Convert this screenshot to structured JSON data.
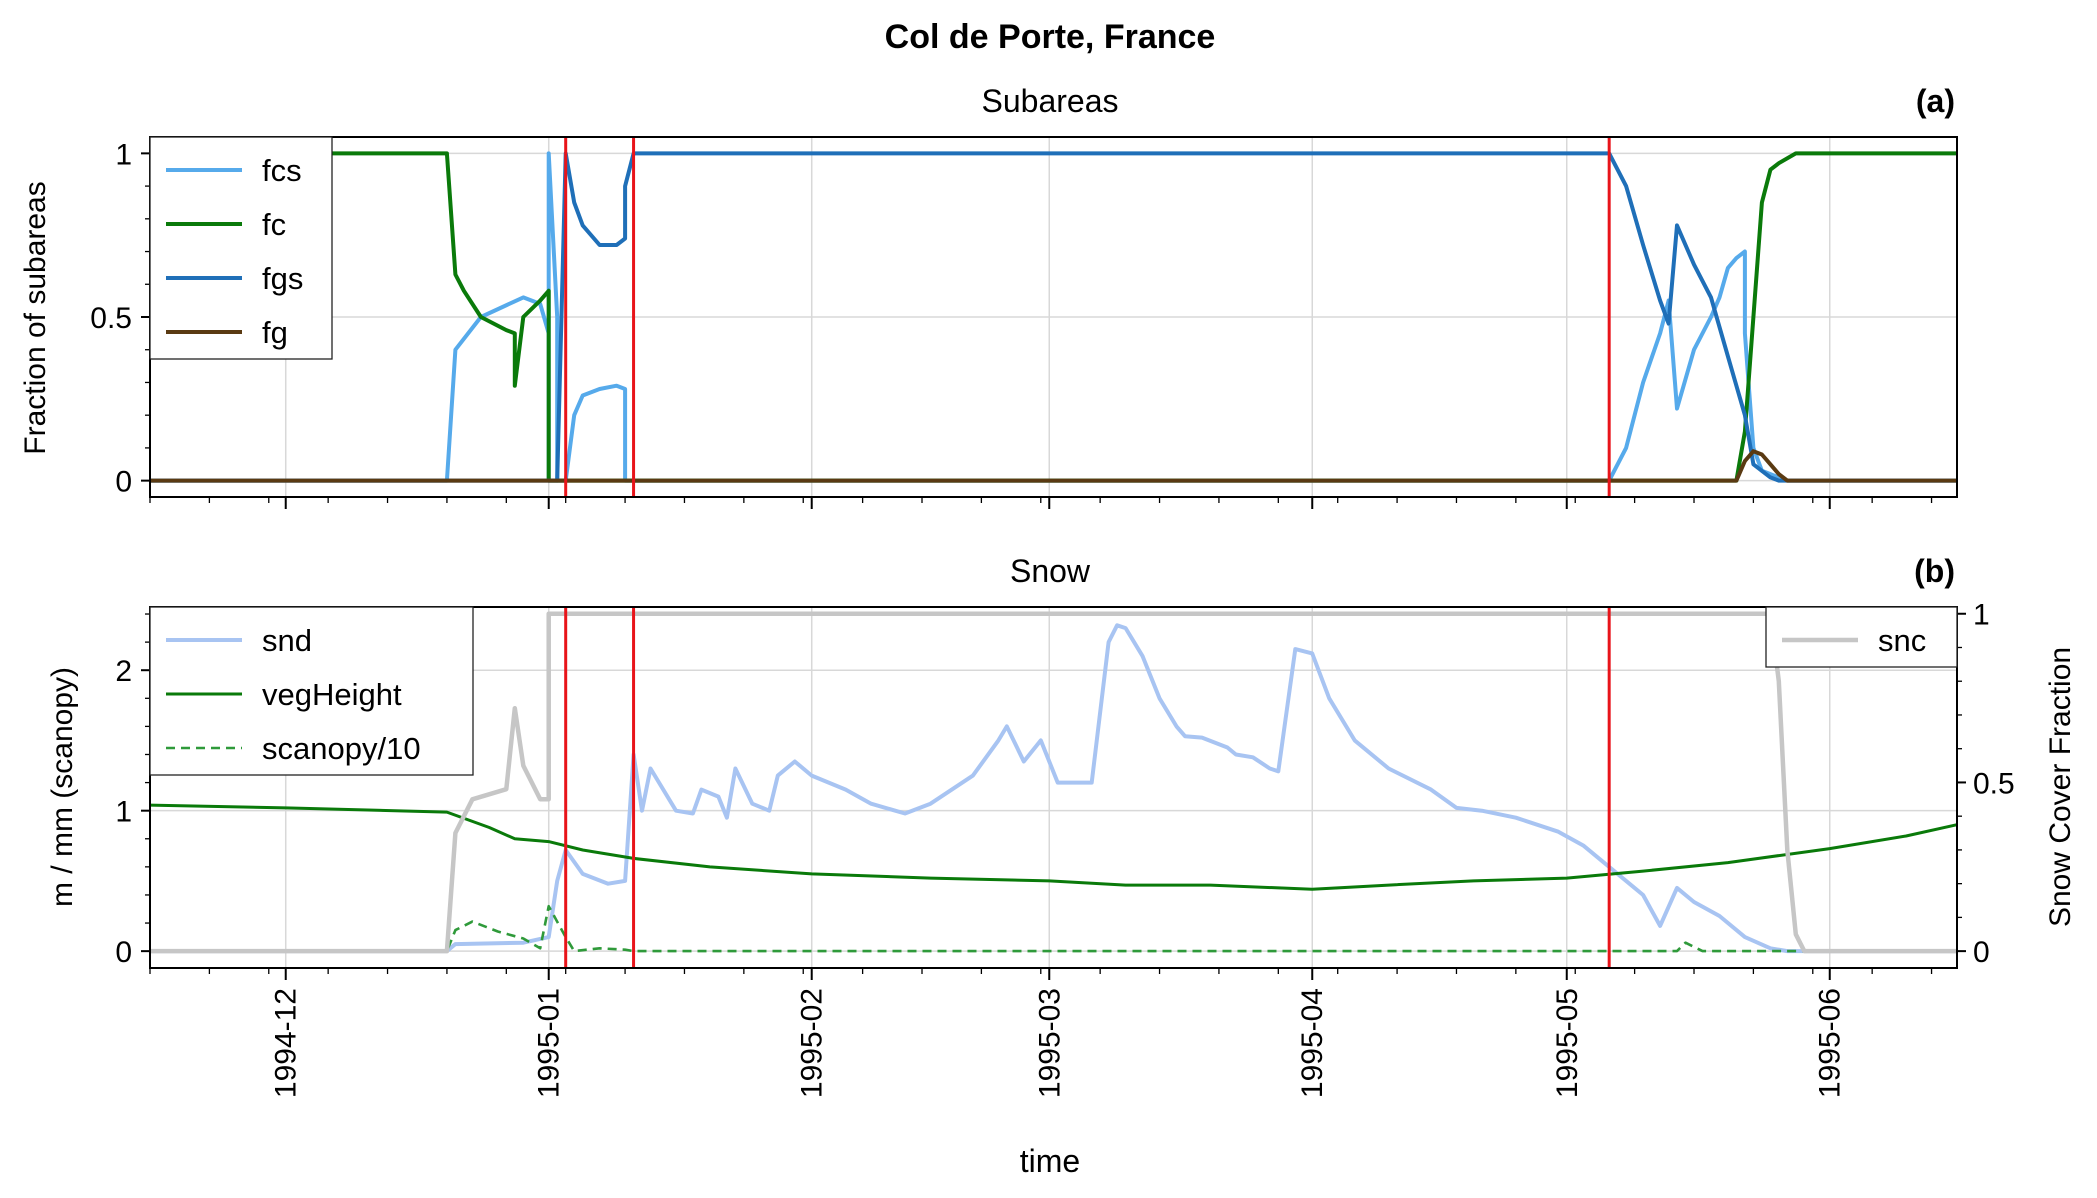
{
  "figure_title": "Col de Porte, France",
  "colors": {
    "fcs": "#56aaeb",
    "fc": "#0a7a0a",
    "fgs": "#1f6fb8",
    "fg": "#5a3a12",
    "snd": "#a8c4f2",
    "vegHeight": "#0a7a0a",
    "scanopy": "#2f9a3a",
    "snc": "#c6c6c6",
    "event": "#e8141a",
    "grid": "#d8d8d8"
  },
  "chart_data": [
    {
      "panel": "a",
      "type": "line",
      "title": "Subareas",
      "panel_label": "(a)",
      "xlabel": "",
      "ylabel": "Fraction of subareas",
      "ylim": [
        -0.05,
        1.05
      ],
      "yticks": [
        0,
        0.5,
        1
      ],
      "ytick_labels": [
        "0",
        "0.5",
        "1"
      ],
      "xlim": [
        "1994-11-15",
        "1995-06-16"
      ],
      "grid": true,
      "legend_position": "upper-left",
      "vlines": [
        "1995-01-03",
        "1995-01-11",
        "1995-05-06"
      ],
      "series": [
        {
          "name": "fcs",
          "key": "fcs",
          "width": 4,
          "dash": "",
          "points": [
            [
              "1994-11-15",
              0
            ],
            [
              "1994-12-20",
              0
            ],
            [
              "1994-12-21",
              0.4
            ],
            [
              "1994-12-24",
              0.5
            ],
            [
              "1994-12-29",
              0.56
            ],
            [
              "1994-12-31",
              0.54
            ],
            [
              "1995-01-01",
              0.45
            ],
            [
              "1995-01-01",
              0
            ],
            [
              "1995-01-01",
              1
            ],
            [
              "1995-01-02",
              0.5
            ],
            [
              "1995-01-02",
              0
            ],
            [
              "1995-01-03",
              0
            ],
            [
              "1995-01-04",
              0.2
            ],
            [
              "1995-01-05",
              0.26
            ],
            [
              "1995-01-07",
              0.28
            ],
            [
              "1995-01-09",
              0.29
            ],
            [
              "1995-01-10",
              0.28
            ],
            [
              "1995-01-10",
              0
            ],
            [
              "1995-01-11",
              0
            ],
            [
              "1995-05-06",
              0
            ],
            [
              "1995-05-08",
              0.1
            ],
            [
              "1995-05-10",
              0.3
            ],
            [
              "1995-05-12",
              0.45
            ],
            [
              "1995-05-13",
              0.55
            ],
            [
              "1995-05-14",
              0.22
            ],
            [
              "1995-05-16",
              0.4
            ],
            [
              "1995-05-18",
              0.5
            ],
            [
              "1995-05-19",
              0.56
            ],
            [
              "1995-05-20",
              0.65
            ],
            [
              "1995-05-21",
              0.68
            ],
            [
              "1995-05-22",
              0.7
            ],
            [
              "1995-05-22",
              0.45
            ],
            [
              "1995-05-23",
              0.1
            ],
            [
              "1995-05-24",
              0.03
            ],
            [
              "1995-05-26",
              0.01
            ],
            [
              "1995-05-27",
              0
            ],
            [
              "1995-06-16",
              0
            ]
          ]
        },
        {
          "name": "fc",
          "key": "fc",
          "width": 4,
          "dash": "",
          "points": [
            [
              "1994-11-15",
              1
            ],
            [
              "1994-12-20",
              1
            ],
            [
              "1994-12-21",
              0.63
            ],
            [
              "1994-12-22",
              0.58
            ],
            [
              "1994-12-24",
              0.5
            ],
            [
              "1994-12-27",
              0.46
            ],
            [
              "1994-12-28",
              0.45
            ],
            [
              "1994-12-28",
              0.29
            ],
            [
              "1994-12-29",
              0.5
            ],
            [
              "1994-12-31",
              0.55
            ],
            [
              "1995-01-01",
              0.58
            ],
            [
              "1995-01-01",
              0
            ],
            [
              "1995-01-11",
              0
            ],
            [
              "1995-05-21",
              0
            ],
            [
              "1995-05-22",
              0.15
            ],
            [
              "1995-05-23",
              0.5
            ],
            [
              "1995-05-24",
              0.85
            ],
            [
              "1995-05-25",
              0.95
            ],
            [
              "1995-05-26",
              0.97
            ],
            [
              "1995-05-28",
              1
            ],
            [
              "1995-06-16",
              1
            ]
          ]
        },
        {
          "name": "fgs",
          "key": "fgs",
          "width": 4,
          "dash": "",
          "points": [
            [
              "1994-11-15",
              0
            ],
            [
              "1995-01-02",
              0
            ],
            [
              "1995-01-03",
              1
            ],
            [
              "1995-01-04",
              0.85
            ],
            [
              "1995-01-05",
              0.78
            ],
            [
              "1995-01-07",
              0.72
            ],
            [
              "1995-01-09",
              0.72
            ],
            [
              "1995-01-10",
              0.74
            ],
            [
              "1995-01-10",
              0.9
            ],
            [
              "1995-01-11",
              1
            ],
            [
              "1995-05-06",
              1
            ],
            [
              "1995-05-08",
              0.9
            ],
            [
              "1995-05-10",
              0.72
            ],
            [
              "1995-05-12",
              0.55
            ],
            [
              "1995-05-13",
              0.48
            ],
            [
              "1995-05-14",
              0.78
            ],
            [
              "1995-05-16",
              0.66
            ],
            [
              "1995-05-18",
              0.56
            ],
            [
              "1995-05-20",
              0.38
            ],
            [
              "1995-05-22",
              0.2
            ],
            [
              "1995-05-23",
              0.05
            ],
            [
              "1995-05-25",
              0.01
            ],
            [
              "1995-05-26",
              0
            ],
            [
              "1995-06-16",
              0
            ]
          ]
        },
        {
          "name": "fg",
          "key": "fg",
          "width": 4,
          "dash": "",
          "points": [
            [
              "1994-11-15",
              0
            ],
            [
              "1995-05-21",
              0
            ],
            [
              "1995-05-22",
              0.06
            ],
            [
              "1995-05-23",
              0.09
            ],
            [
              "1995-05-24",
              0.08
            ],
            [
              "1995-05-25",
              0.05
            ],
            [
              "1995-05-26",
              0.02
            ],
            [
              "1995-05-27",
              0
            ],
            [
              "1995-06-16",
              0
            ]
          ]
        }
      ]
    },
    {
      "panel": "b",
      "type": "line",
      "title": "Snow",
      "panel_label": "(b)",
      "xlabel": "time",
      "ylabel": "m / mm (scanopy)",
      "ylabel_right": "Snow Cover Fraction",
      "ylim": [
        -0.12,
        2.45
      ],
      "yticks": [
        0,
        1,
        2
      ],
      "ytick_labels": [
        "0",
        "1",
        "2"
      ],
      "ylim_right": [
        -0.05,
        1.02
      ],
      "yticks_right": [
        0,
        0.5,
        1
      ],
      "ytick_labels_right": [
        "0",
        "0.5",
        "1"
      ],
      "xlim": [
        "1994-11-15",
        "1995-06-16"
      ],
      "xticks": [
        "1994-12-01",
        "1995-01-01",
        "1995-02-01",
        "1995-03-01",
        "1995-04-01",
        "1995-05-01",
        "1995-06-01"
      ],
      "xtick_labels": [
        "1994-12",
        "1995-01",
        "1995-02",
        "1995-03",
        "1995-04",
        "1995-05",
        "1995-06"
      ],
      "grid": true,
      "legend_position": "upper-left",
      "legend_right_position": "upper-right",
      "vlines": [
        "1995-01-03",
        "1995-01-11",
        "1995-05-06"
      ],
      "series": [
        {
          "name": "snd",
          "key": "snd",
          "axis": "left",
          "width": 4,
          "dash": "",
          "points": [
            [
              "1994-11-15",
              0
            ],
            [
              "1994-12-20",
              0
            ],
            [
              "1994-12-21",
              0.05
            ],
            [
              "1994-12-29",
              0.06
            ],
            [
              "1995-01-01",
              0.1
            ],
            [
              "1995-01-02",
              0.5
            ],
            [
              "1995-01-03",
              0.72
            ],
            [
              "1995-01-05",
              0.55
            ],
            [
              "1995-01-08",
              0.48
            ],
            [
              "1995-01-10",
              0.5
            ],
            [
              "1995-01-11",
              1.4
            ],
            [
              "1995-01-12",
              1
            ],
            [
              "1995-01-13",
              1.3
            ],
            [
              "1995-01-16",
              1
            ],
            [
              "1995-01-18",
              0.98
            ],
            [
              "1995-01-19",
              1.15
            ],
            [
              "1995-01-21",
              1.1
            ],
            [
              "1995-01-22",
              0.95
            ],
            [
              "1995-01-23",
              1.3
            ],
            [
              "1995-01-25",
              1.05
            ],
            [
              "1995-01-27",
              1
            ],
            [
              "1995-01-28",
              1.25
            ],
            [
              "1995-01-30",
              1.35
            ],
            [
              "1995-02-01",
              1.25
            ],
            [
              "1995-02-05",
              1.15
            ],
            [
              "1995-02-08",
              1.05
            ],
            [
              "1995-02-12",
              0.98
            ],
            [
              "1995-02-15",
              1.05
            ],
            [
              "1995-02-20",
              1.25
            ],
            [
              "1995-02-23",
              1.5
            ],
            [
              "1995-02-24",
              1.6
            ],
            [
              "1995-02-26",
              1.35
            ],
            [
              "1995-02-28",
              1.5
            ],
            [
              "1995-03-02",
              1.2
            ],
            [
              "1995-03-06",
              1.2
            ],
            [
              "1995-03-08",
              2.2
            ],
            [
              "1995-03-09",
              2.32
            ],
            [
              "1995-03-10",
              2.3
            ],
            [
              "1995-03-12",
              2.1
            ],
            [
              "1995-03-14",
              1.8
            ],
            [
              "1995-03-16",
              1.6
            ],
            [
              "1995-03-17",
              1.53
            ],
            [
              "1995-03-19",
              1.52
            ],
            [
              "1995-03-22",
              1.45
            ],
            [
              "1995-03-23",
              1.4
            ],
            [
              "1995-03-25",
              1.38
            ],
            [
              "1995-03-27",
              1.3
            ],
            [
              "1995-03-28",
              1.28
            ],
            [
              "1995-03-30",
              2.15
            ],
            [
              "1995-04-01",
              2.12
            ],
            [
              "1995-04-03",
              1.8
            ],
            [
              "1995-04-06",
              1.5
            ],
            [
              "1995-04-10",
              1.3
            ],
            [
              "1995-04-15",
              1.15
            ],
            [
              "1995-04-18",
              1.02
            ],
            [
              "1995-04-21",
              1
            ],
            [
              "1995-04-25",
              0.95
            ],
            [
              "1995-04-30",
              0.85
            ],
            [
              "1995-05-03",
              0.75
            ],
            [
              "1995-05-06",
              0.6
            ],
            [
              "1995-05-10",
              0.4
            ],
            [
              "1995-05-12",
              0.18
            ],
            [
              "1995-05-14",
              0.45
            ],
            [
              "1995-05-16",
              0.35
            ],
            [
              "1995-05-19",
              0.25
            ],
            [
              "1995-05-22",
              0.1
            ],
            [
              "1995-05-25",
              0.02
            ],
            [
              "1995-05-27",
              0
            ],
            [
              "1995-06-16",
              0
            ]
          ]
        },
        {
          "name": "vegHeight",
          "key": "vegHeight",
          "axis": "left",
          "width": 3,
          "dash": "",
          "points": [
            [
              "1994-11-15",
              1.04
            ],
            [
              "1994-12-01",
              1.02
            ],
            [
              "1994-12-20",
              0.99
            ],
            [
              "1994-12-25",
              0.88
            ],
            [
              "1994-12-28",
              0.8
            ],
            [
              "1995-01-01",
              0.78
            ],
            [
              "1995-01-05",
              0.72
            ],
            [
              "1995-01-11",
              0.66
            ],
            [
              "1995-01-20",
              0.6
            ],
            [
              "1995-02-01",
              0.55
            ],
            [
              "1995-02-15",
              0.52
            ],
            [
              "1995-03-01",
              0.5
            ],
            [
              "1995-03-10",
              0.47
            ],
            [
              "1995-03-20",
              0.47
            ],
            [
              "1995-04-01",
              0.44
            ],
            [
              "1995-04-10",
              0.47
            ],
            [
              "1995-04-20",
              0.5
            ],
            [
              "1995-05-01",
              0.52
            ],
            [
              "1995-05-10",
              0.57
            ],
            [
              "1995-05-20",
              0.63
            ],
            [
              "1995-06-01",
              0.73
            ],
            [
              "1995-06-10",
              0.82
            ],
            [
              "1995-06-16",
              0.9
            ]
          ]
        },
        {
          "name": "scanopy/10",
          "key": "scanopy",
          "axis": "left",
          "width": 2.6,
          "dash": "9,6",
          "points": [
            [
              "1994-11-15",
              0
            ],
            [
              "1994-12-20",
              0
            ],
            [
              "1994-12-21",
              0.15
            ],
            [
              "1994-12-23",
              0.21
            ],
            [
              "1994-12-26",
              0.14
            ],
            [
              "1994-12-29",
              0.09
            ],
            [
              "1994-12-31",
              0.02
            ],
            [
              "1995-01-01",
              0.32
            ],
            [
              "1995-01-03",
              0.1
            ],
            [
              "1995-01-04",
              0
            ],
            [
              "1995-01-07",
              0.02
            ],
            [
              "1995-01-10",
              0.01
            ],
            [
              "1995-01-11",
              0
            ],
            [
              "1995-05-14",
              0
            ],
            [
              "1995-05-15",
              0.06
            ],
            [
              "1995-05-17",
              0
            ],
            [
              "1995-06-16",
              0
            ]
          ]
        },
        {
          "name": "snc",
          "key": "snc",
          "axis": "right",
          "width": 4.5,
          "dash": "",
          "points": [
            [
              "1994-11-15",
              0
            ],
            [
              "1994-12-20",
              0
            ],
            [
              "1994-12-21",
              0.35
            ],
            [
              "1994-12-23",
              0.45
            ],
            [
              "1994-12-27",
              0.48
            ],
            [
              "1994-12-28",
              0.72
            ],
            [
              "1994-12-29",
              0.55
            ],
            [
              "1994-12-31",
              0.45
            ],
            [
              "1995-01-01",
              0.45
            ],
            [
              "1995-01-01",
              1
            ],
            [
              "1995-05-25",
              1
            ],
            [
              "1995-05-26",
              0.8
            ],
            [
              "1995-05-27",
              0.3
            ],
            [
              "1995-05-28",
              0.05
            ],
            [
              "1995-05-29",
              0
            ],
            [
              "1995-06-16",
              0
            ]
          ]
        }
      ]
    }
  ]
}
